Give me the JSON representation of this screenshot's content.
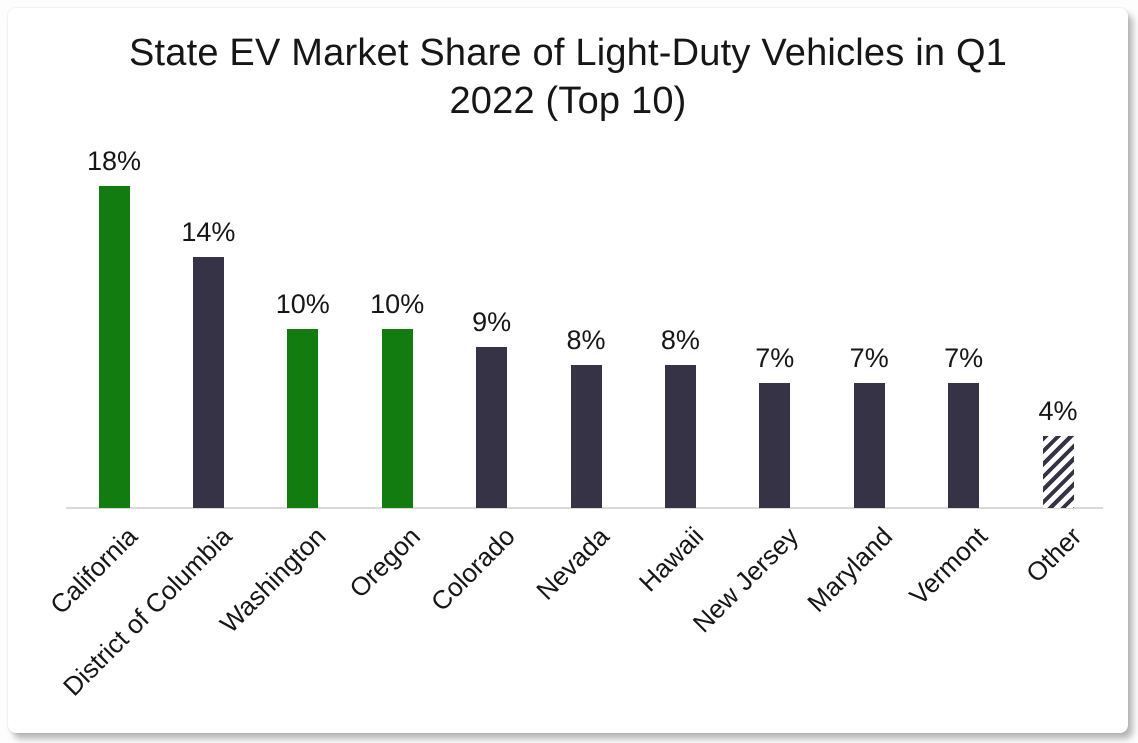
{
  "chart_data": {
    "type": "bar",
    "title": "State EV Market Share of Light-Duty Vehicles in Q1 2022 (Top 10)",
    "categories": [
      "California",
      "District of Columbia",
      "Washington",
      "Oregon",
      "Colorado",
      "Nevada",
      "Hawaii",
      "New Jersey",
      "Maryland",
      "Vermont",
      "Other"
    ],
    "values": [
      18,
      14,
      10,
      10,
      9,
      8,
      8,
      7,
      7,
      7,
      4
    ],
    "data_labels": [
      "18%",
      "14%",
      "10%",
      "10%",
      "9%",
      "8%",
      "8%",
      "7%",
      "7%",
      "7%",
      "4%"
    ],
    "bar_styles": [
      "green",
      "dark",
      "green",
      "green",
      "dark",
      "dark",
      "dark",
      "dark",
      "dark",
      "dark",
      "hatched"
    ],
    "xlabel": "",
    "ylabel": "",
    "ylim": [
      0,
      20
    ],
    "grid": false,
    "legend": null,
    "x_tick_rotation_deg": 45,
    "colors": {
      "green": "#127c11",
      "dark": "#363346",
      "hatch_stripe": "#363346",
      "hatch_background": "#ffffff",
      "axis_line": "#d9d9d9",
      "text": "#161616"
    }
  }
}
